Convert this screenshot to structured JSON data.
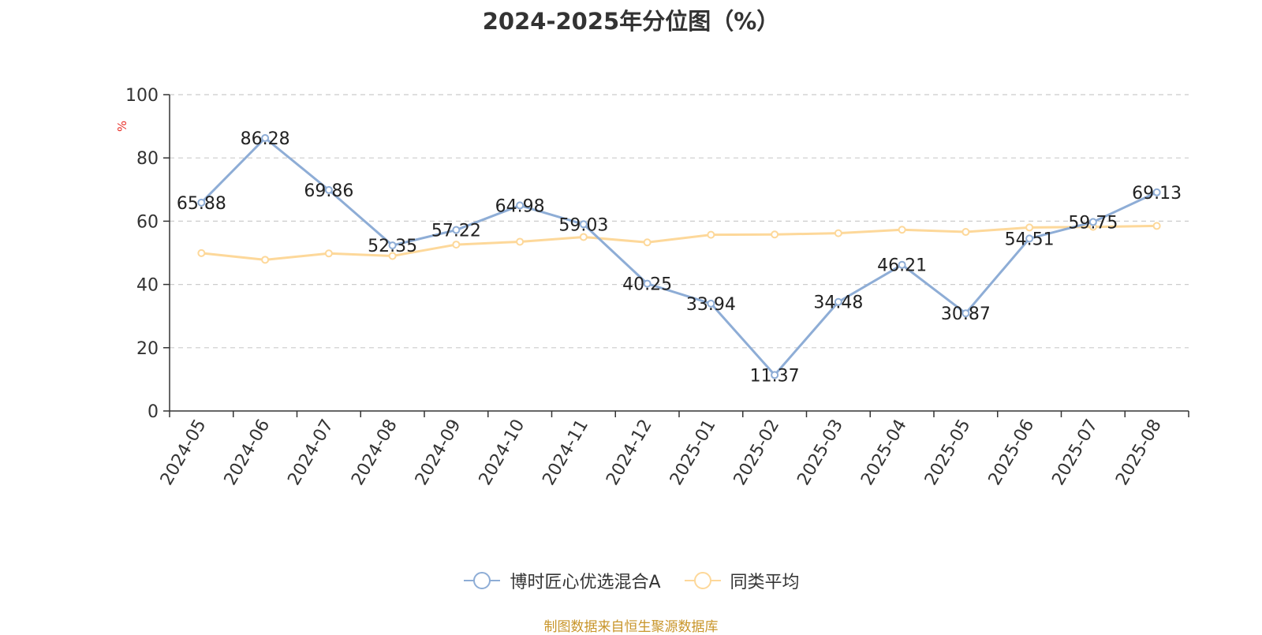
{
  "chart_data": {
    "type": "line",
    "title": "2024-2025年分位图（%）",
    "ylabel": "%",
    "xlabel": "",
    "ylim": [
      0,
      100
    ],
    "yticks": [
      0,
      20,
      40,
      60,
      80,
      100
    ],
    "grid": true,
    "legend_position": "bottom",
    "categories": [
      "2024-05",
      "2024-06",
      "2024-07",
      "2024-08",
      "2024-09",
      "2024-10",
      "2024-11",
      "2024-12",
      "2025-01",
      "2025-02",
      "2025-03",
      "2025-04",
      "2025-05",
      "2025-06",
      "2025-07",
      "2025-08"
    ],
    "series": [
      {
        "name": "博时匠心优选混合A",
        "color": "#8eadd6",
        "values": [
          65.88,
          86.28,
          69.86,
          52.35,
          57.22,
          64.98,
          59.03,
          40.25,
          33.94,
          11.37,
          34.48,
          46.21,
          30.87,
          54.51,
          59.75,
          69.13
        ],
        "labels": [
          "65.88",
          "86.28",
          "69.86",
          "52.35",
          "57.22",
          "64.98",
          "59.03",
          "40.25",
          "33.94",
          "11.37",
          "34.48",
          "46.21",
          "30.87",
          "54.51",
          "59.75",
          "69.13"
        ]
      },
      {
        "name": "同类平均",
        "color": "#fdd89a",
        "values": [
          49.9,
          47.8,
          49.8,
          49.0,
          52.6,
          53.5,
          55.0,
          53.3,
          55.7,
          55.8,
          56.2,
          57.3,
          56.6,
          58.0,
          58.2,
          58.5
        ]
      }
    ],
    "axis_color": "#333333",
    "ylabel_color": "#e8302a"
  },
  "source_note": "制图数据来自恒生聚源数据库",
  "source_color": "#c8952a"
}
